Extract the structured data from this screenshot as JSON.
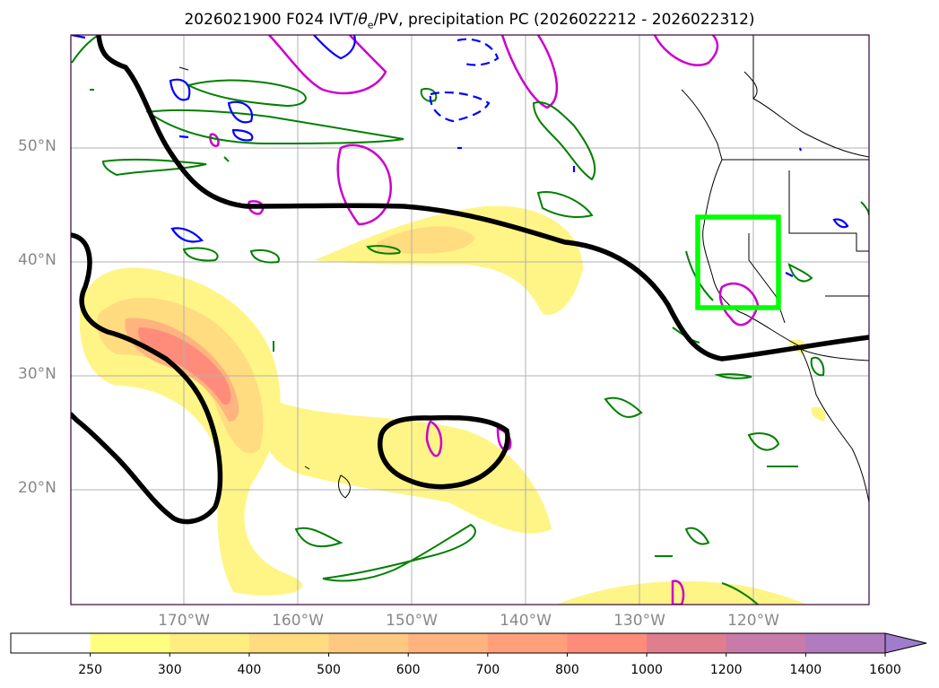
{
  "title_main": "2026021900 F024 IVT/",
  "title_theta": "θ",
  "title_sub": "e",
  "title_tail": "/PV, precipitation PC (2026022212 - 2026022312)",
  "lat_labels": [
    "50°N",
    "40°N",
    "30°N",
    "20°N"
  ],
  "lon_labels": [
    "170°W",
    "160°W",
    "150°W",
    "140°W",
    "130°W",
    "120°W"
  ],
  "colorbar": {
    "labels": [
      "250",
      "300",
      "400",
      "500",
      "600",
      "700",
      "800",
      "1000",
      "1200",
      "1400",
      "1600"
    ],
    "colors": [
      "#ffffff",
      "#ffff80",
      "#ffed80",
      "#ffdc80",
      "#ffc880",
      "#ffb47f",
      "#ffa07a",
      "#ff8c7a",
      "#e07d8e",
      "#c87ba8",
      "#b07cbf",
      "#a07ccc"
    ]
  },
  "colors": {
    "ivt_contour": "#000000",
    "pv_contour": "#cc00cc",
    "theta_contour": "#008000",
    "blue_contour": "#0000ff",
    "box": "#00ff00"
  }
}
